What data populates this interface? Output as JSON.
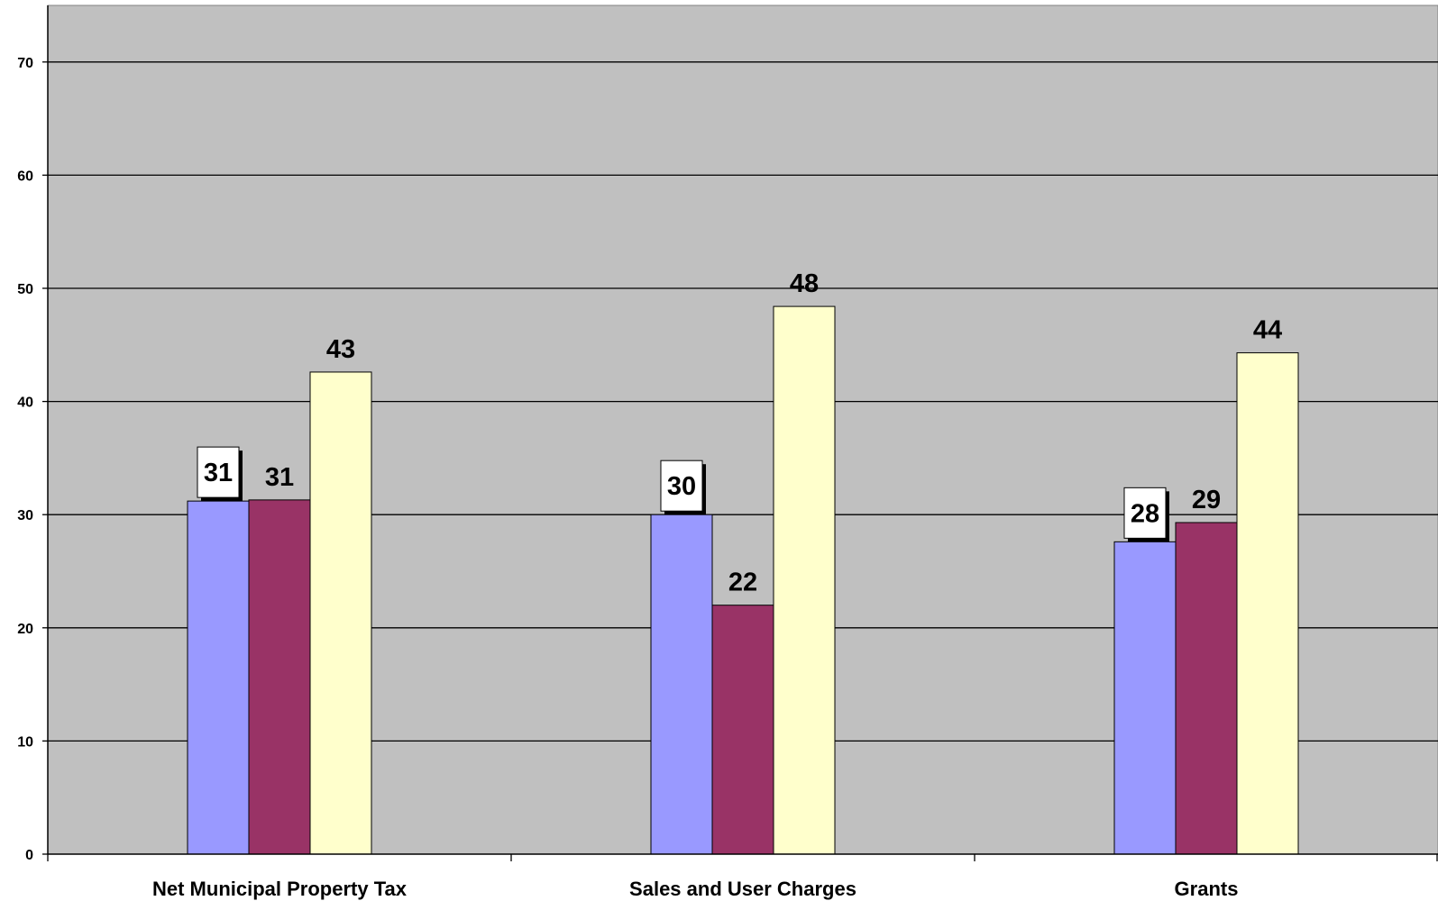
{
  "chart_data": {
    "type": "bar",
    "categories": [
      "Net Municipal Property Tax",
      "Sales and User Charges",
      "Grants"
    ],
    "series": [
      {
        "values": [
          31.2,
          30.0,
          27.6
        ],
        "labels": [
          "31",
          "30",
          "28"
        ],
        "color": "#9999FF",
        "label_boxed": true
      },
      {
        "values": [
          31.3,
          22.0,
          29.3
        ],
        "labels": [
          "31",
          "22",
          "29"
        ],
        "color": "#993366",
        "label_boxed": false
      },
      {
        "values": [
          42.6,
          48.4,
          44.3
        ],
        "labels": [
          "43",
          "48",
          "44"
        ],
        "color": "#FFFFCC",
        "label_boxed": false
      }
    ],
    "ylim": [
      0,
      75
    ],
    "yticks": [
      "0",
      "10",
      "20",
      "30",
      "40",
      "50",
      "60",
      "70"
    ],
    "ytick_values": [
      0,
      10,
      20,
      30,
      40,
      50,
      60,
      70
    ],
    "title": "",
    "xlabel": "",
    "ylabel": "",
    "grid": true,
    "legend": "none",
    "plot_background": "#C0C0C0"
  }
}
